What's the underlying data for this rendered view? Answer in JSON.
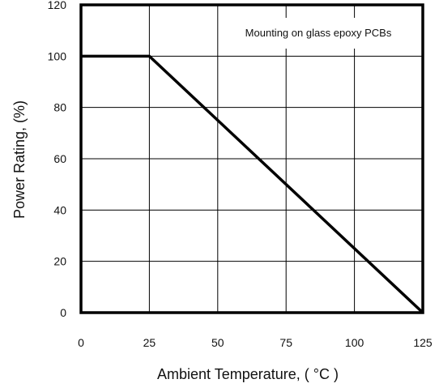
{
  "chart_data": {
    "type": "line",
    "title": "",
    "xlabel": "Ambient Temperature, ( °C )",
    "ylabel": "Power Rating, (%)",
    "xlim": [
      0,
      125
    ],
    "ylim": [
      0,
      120
    ],
    "x_ticks": [
      0,
      25,
      50,
      75,
      100,
      125
    ],
    "y_ticks": [
      0,
      20,
      40,
      60,
      80,
      100,
      120
    ],
    "grid": true,
    "annotation": "Mounting on glass epoxy PCBs",
    "series": [
      {
        "x": [
          0,
          25,
          125
        ],
        "y": [
          100,
          100,
          0
        ]
      }
    ],
    "colors": {
      "line": "#000000",
      "grid": "#000000",
      "frame": "#000000"
    }
  }
}
